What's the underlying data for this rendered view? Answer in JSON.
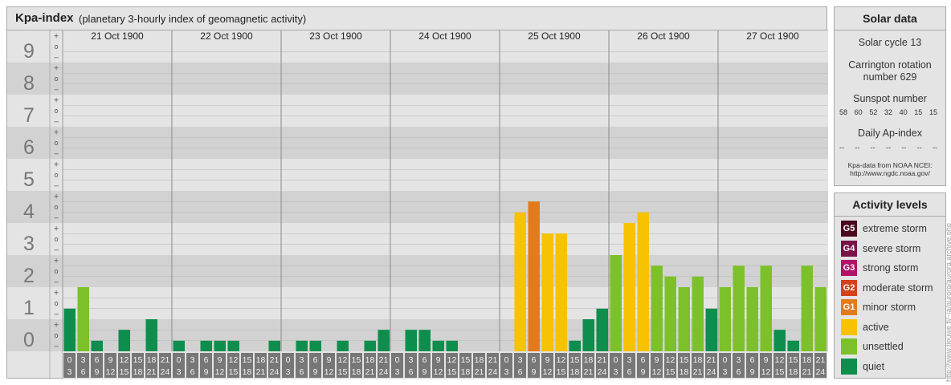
{
  "header": {
    "title": "Kpa-index",
    "subtitle": "(planetary 3-hourly index of geomagnetic activity)"
  },
  "chart_data": {
    "type": "bar",
    "title": "Kpa-index",
    "subtitle": "(planetary 3-hourly index of geomagnetic activity)",
    "ylim": [
      0,
      9
    ],
    "y_ticks": [
      "0",
      "1",
      "2",
      "3",
      "4",
      "5",
      "6",
      "7",
      "8",
      "9"
    ],
    "sub_ticks": [
      "−",
      "o",
      "+"
    ],
    "days": [
      "21 Oct 1900",
      "22 Oct 1900",
      "23 Oct 1900",
      "24 Oct 1900",
      "25 Oct 1900",
      "26 Oct 1900",
      "27 Oct 1900"
    ],
    "interval_labels": [
      [
        "0",
        "3"
      ],
      [
        "3",
        "6"
      ],
      [
        "6",
        "9"
      ],
      [
        "9",
        "12"
      ],
      [
        "12",
        "15"
      ],
      [
        "15",
        "18"
      ],
      [
        "18",
        "21"
      ],
      [
        "21",
        "24"
      ]
    ],
    "values": [
      1.33,
      2.0,
      0.33,
      0.0,
      0.67,
      0.0,
      1.0,
      0.0,
      0.33,
      0.0,
      0.33,
      0.33,
      0.33,
      0.0,
      0.0,
      0.33,
      0.0,
      0.33,
      0.33,
      0.0,
      0.33,
      0.0,
      0.33,
      0.67,
      0.0,
      0.67,
      0.67,
      0.33,
      0.33,
      0.0,
      0.0,
      0.0,
      0.0,
      4.33,
      4.67,
      3.67,
      3.67,
      0.33,
      1.0,
      1.33,
      3.0,
      4.0,
      4.33,
      2.67,
      2.33,
      2.0,
      2.33,
      1.33,
      2.0,
      2.67,
      2.0,
      2.67,
      0.67,
      0.33,
      2.67,
      2.0
    ],
    "colors": {
      "quiet": "#0e8e4c",
      "unsettled": "#7cc12a",
      "active": "#f7c200",
      "minor_storm": "#e37b1c"
    }
  },
  "solar": {
    "title": "Solar data",
    "solar_cycle": "Solar cycle 13",
    "carrington": "Carrington rotation number 629",
    "sunspot_label": "Sunspot number",
    "sunspot_values": [
      "58",
      "60",
      "52",
      "32",
      "40",
      "15",
      "15"
    ],
    "ap_label": "Daily Ap-index",
    "ap_values": [
      "--",
      "--",
      "--",
      "--",
      "--",
      "--",
      "--"
    ],
    "source": "Kpa-data from NOAA NCEI:",
    "source_url": "http://www.ngdc.noaa.gov/"
  },
  "activity": {
    "title": "Activity levels",
    "levels": [
      {
        "code": "G5",
        "label": "extreme storm",
        "color": "#4a0a1c"
      },
      {
        "code": "G4",
        "label": "severe storm",
        "color": "#7a1248"
      },
      {
        "code": "G3",
        "label": "strong storm",
        "color": "#b01267"
      },
      {
        "code": "G2",
        "label": "moderate storm",
        "color": "#d6401a"
      },
      {
        "code": "G1",
        "label": "minor storm",
        "color": "#e37b1c"
      },
      {
        "code": "",
        "label": "active",
        "color": "#f7c200"
      },
      {
        "code": "",
        "label": "unsettled",
        "color": "#7cc12a"
      },
      {
        "code": "",
        "label": "quiet",
        "color": "#0e8e4c"
      }
    ]
  },
  "credit": "http://www.tieuwe.fi/~ja/aurora/aurora.archive.php"
}
